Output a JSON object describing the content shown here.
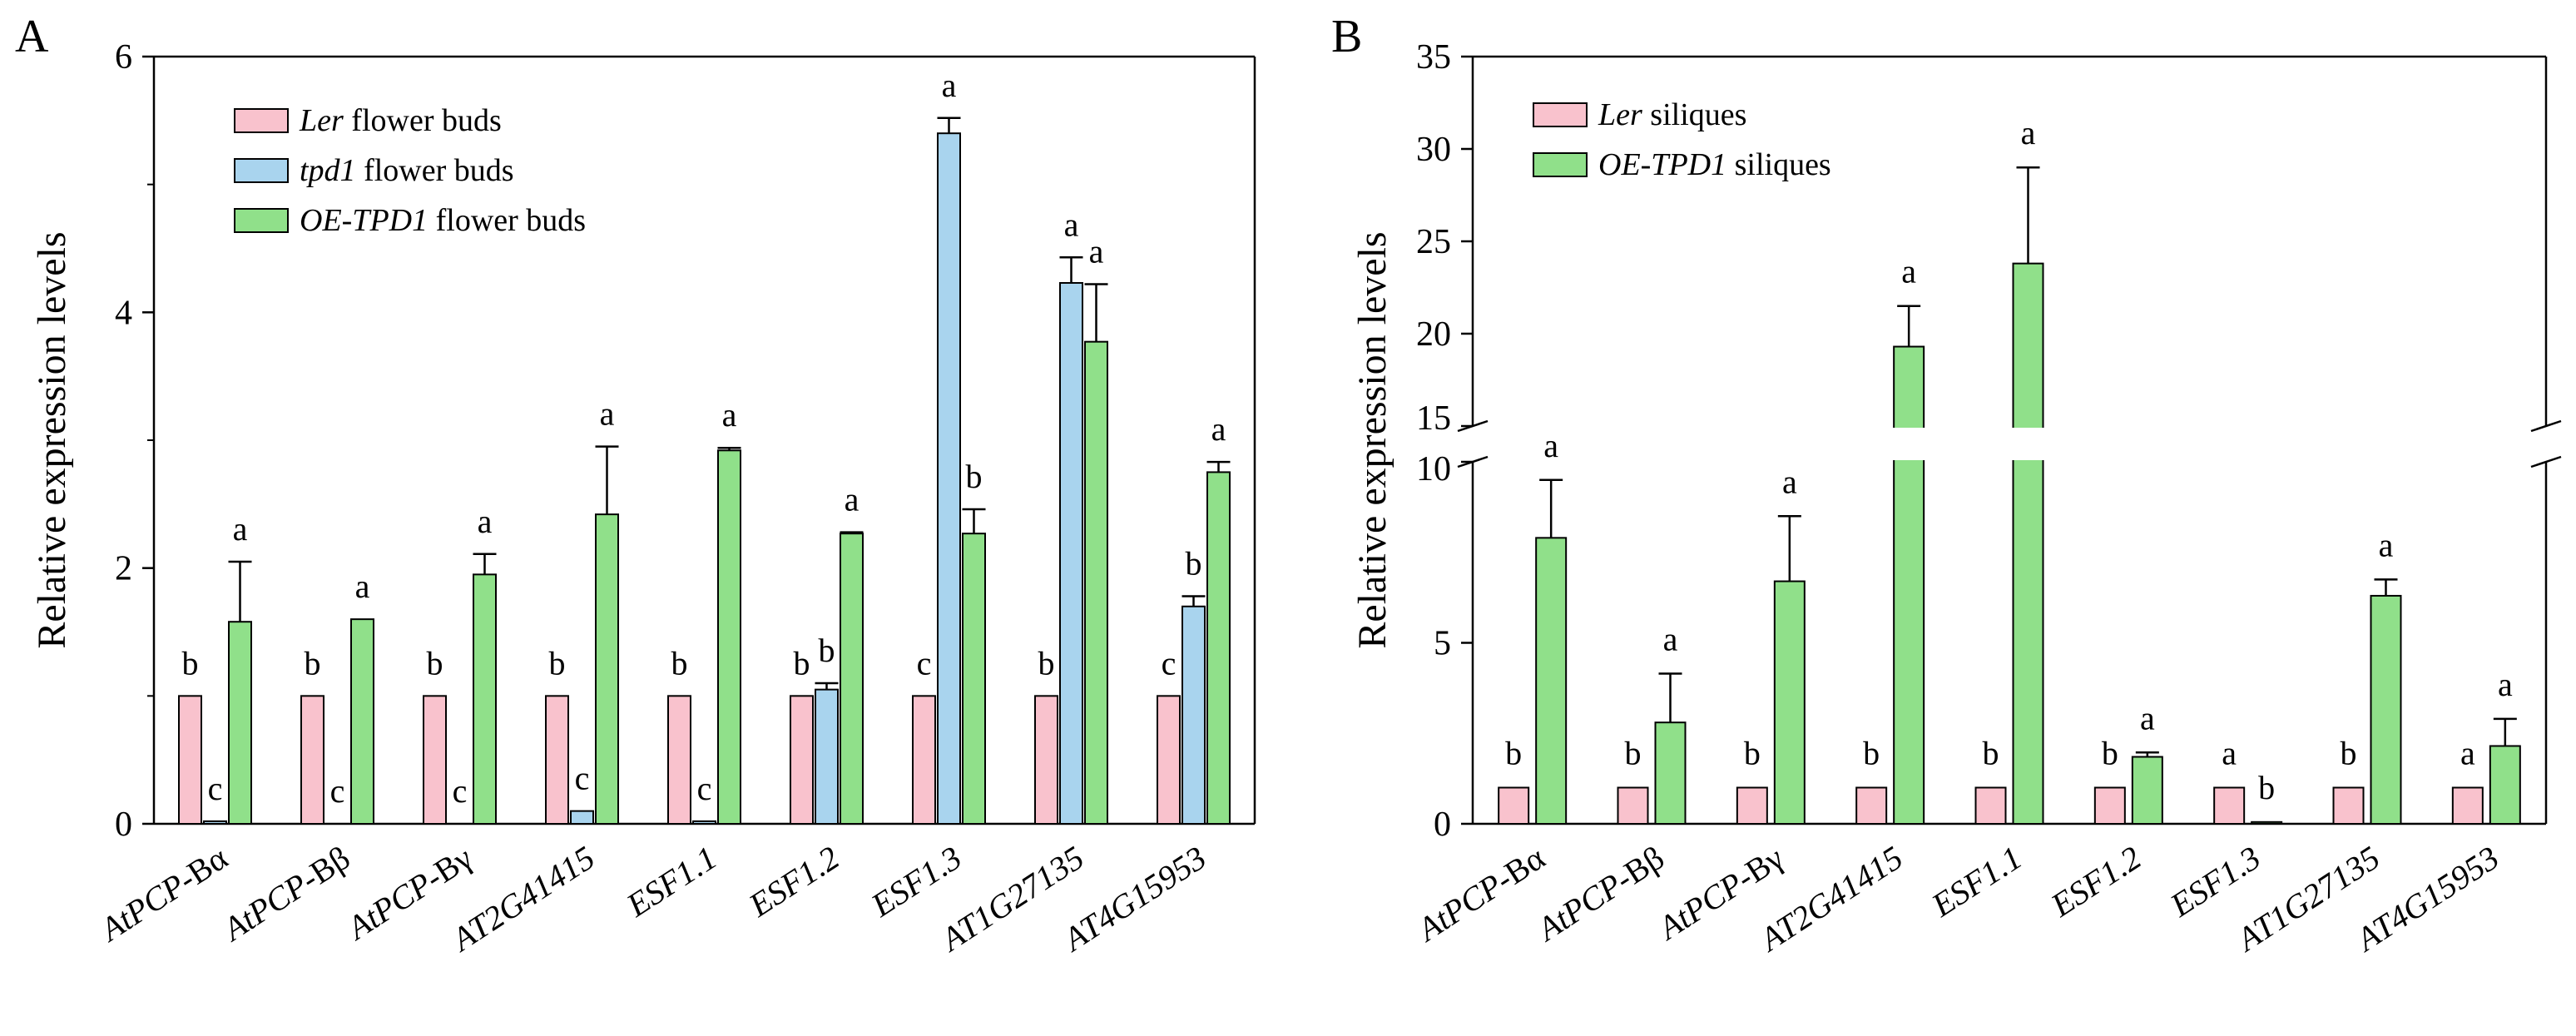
{
  "chart_data": [
    {
      "panel": "A",
      "type": "bar",
      "title": "",
      "xlabel": "",
      "ylabel": "Relative expression levels",
      "ylim": [
        0,
        6
      ],
      "yticks": [
        0,
        2,
        4,
        6
      ],
      "ytick_labels": [
        "0",
        "2",
        "4",
        "6"
      ],
      "legend_position": "top-left",
      "categories": [
        "AtPCP-Bα",
        "AtPCP-Bβ",
        "AtPCP-Bγ",
        "AT2G41415",
        "ESF1.1",
        "ESF1.2",
        "ESF1.3",
        "AT1G27135",
        "AT4G15953"
      ],
      "series": [
        {
          "name": "Ler flower buds",
          "legend_italic": "Ler",
          "legend_rest": " flower buds",
          "color": "#f9c2cd",
          "values": [
            1,
            1,
            1,
            1,
            1,
            1,
            1,
            1,
            1
          ],
          "errors": [
            0,
            0,
            0,
            0,
            0,
            0,
            0,
            0,
            0
          ],
          "letters": [
            "b",
            "b",
            "b",
            "b",
            "b",
            "b",
            "c",
            "b",
            "c"
          ]
        },
        {
          "name": "tpd1 flower buds",
          "legend_italic": "tpd1",
          "legend_rest": " flower buds",
          "color": "#a9d4ee",
          "values": [
            0.02,
            0,
            0,
            0.1,
            0.02,
            1.05,
            5.4,
            4.23,
            1.7
          ],
          "errors": [
            0,
            0,
            0,
            0,
            0,
            0.05,
            0.12,
            0.2,
            0.08
          ],
          "letters": [
            "c",
            "c",
            "c",
            "c",
            "c",
            "b",
            "a",
            "a",
            "b"
          ]
        },
        {
          "name": "OE-TPD1 flower buds",
          "legend_italic": "OE-TPD1",
          "legend_rest": " flower buds",
          "color": "#90e08a",
          "values": [
            1.58,
            1.6,
            1.95,
            2.42,
            2.92,
            2.27,
            2.27,
            3.77,
            2.75
          ],
          "errors": [
            0.47,
            0,
            0.16,
            0.53,
            0.02,
            0.01,
            0.19,
            0.45,
            0.08
          ],
          "letters": [
            "a",
            "a",
            "a",
            "a",
            "a",
            "a",
            "b",
            "a",
            "a"
          ]
        }
      ]
    },
    {
      "panel": "B",
      "type": "bar",
      "title": "",
      "xlabel": "",
      "ylabel": "Relative expression levels",
      "broken_axis": {
        "lower": [
          0,
          10
        ],
        "upper": [
          15,
          35
        ]
      },
      "yticks": [
        0,
        5,
        10,
        15,
        20,
        25,
        30,
        35
      ],
      "ytick_labels": [
        "0",
        "5",
        "10",
        "15",
        "20",
        "25",
        "30",
        "35"
      ],
      "legend_position": "top-left",
      "categories": [
        "AtPCP-Bα",
        "AtPCP-Bβ",
        "AtPCP-Bγ",
        "AT2G41415",
        "ESF1.1",
        "ESF1.2",
        "ESF1.3",
        "AT1G27135",
        "AT4G15953"
      ],
      "series": [
        {
          "name": "Ler siliques",
          "legend_italic": "Ler",
          "legend_rest": " siliques",
          "color": "#f9c2cd",
          "values": [
            1,
            1,
            1,
            1,
            1,
            1,
            1,
            1,
            1
          ],
          "errors": [
            0,
            0,
            0,
            0,
            0,
            0,
            0,
            0,
            0
          ],
          "letters": [
            "b",
            "b",
            "b",
            "b",
            "b",
            "b",
            "a",
            "b",
            "a"
          ]
        },
        {
          "name": "OE-TPD1 siliques",
          "legend_italic": "OE-TPD1",
          "legend_rest": " siliques",
          "color": "#90e08a",
          "values": [
            7.9,
            2.8,
            6.7,
            19.3,
            23.8,
            1.85,
            0.05,
            6.3,
            2.15
          ],
          "errors": [
            1.6,
            1.35,
            1.8,
            2.2,
            5.2,
            0.12,
            0,
            0.45,
            0.75
          ],
          "letters": [
            "a",
            "a",
            "a",
            "a",
            "a",
            "a",
            "b",
            "a",
            "a"
          ]
        }
      ]
    }
  ]
}
